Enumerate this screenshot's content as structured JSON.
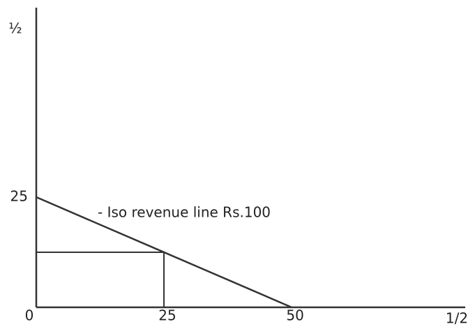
{
  "chart_data": {
    "type": "line",
    "x_label": "1/2",
    "y_label": "½",
    "annotation": "-   Iso revenue line Rs.100",
    "x": [
      0,
      25,
      50
    ],
    "series": [
      {
        "color": "#333333",
        "values": [
          25,
          12.5,
          0
        ]
      }
    ],
    "xlim": [
      0,
      84
    ],
    "ylim": [
      0,
      68
    ],
    "xticks": [
      0,
      25,
      50
    ],
    "yticks": [
      25
    ],
    "guide_point": 1
  }
}
